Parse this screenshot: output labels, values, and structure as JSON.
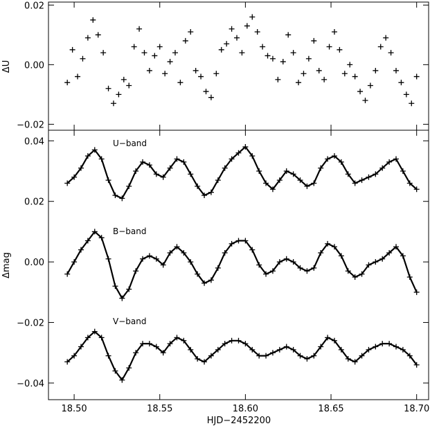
{
  "figure": {
    "background": "#ffffff",
    "ink": "#000000"
  },
  "chart_data": [
    {
      "type": "scatter",
      "panel": "top",
      "title": "",
      "xlabel": "",
      "ylabel": "ΔU",
      "xlim": [
        18.485,
        18.707
      ],
      "ylim": [
        -0.022,
        0.021
      ],
      "grid": false,
      "marker": "+",
      "xticks": [
        18.5,
        18.55,
        18.6,
        18.65,
        18.7
      ],
      "yticks": [
        -0.02,
        0.0,
        0.02
      ],
      "ytick_labels": [
        "−0.02",
        "0.00",
        "0.02"
      ],
      "series": [
        {
          "x": [
            18.496,
            18.499,
            18.502,
            18.505,
            18.508,
            18.511,
            18.514,
            18.517,
            18.52,
            18.523,
            18.526,
            18.529,
            18.532,
            18.535,
            18.538,
            18.541,
            18.544,
            18.547,
            18.55,
            18.553,
            18.556,
            18.559,
            18.562,
            18.565,
            18.568,
            18.571,
            18.574,
            18.577,
            18.58,
            18.583,
            18.586,
            18.589,
            18.592,
            18.595,
            18.598,
            18.601,
            18.604,
            18.607,
            18.61,
            18.613,
            18.616,
            18.619,
            18.622,
            18.625,
            18.628,
            18.631,
            18.634,
            18.637,
            18.64,
            18.643,
            18.646,
            18.649,
            18.652,
            18.655,
            18.658,
            18.661,
            18.664,
            18.667,
            18.67,
            18.673,
            18.676,
            18.679,
            18.682,
            18.685,
            18.688,
            18.691,
            18.694,
            18.697,
            18.7
          ],
          "y": [
            -0.006,
            0.005,
            -0.004,
            0.002,
            0.009,
            0.015,
            0.01,
            0.004,
            -0.008,
            -0.013,
            -0.01,
            -0.005,
            -0.007,
            0.006,
            0.012,
            0.004,
            -0.002,
            0.003,
            0.006,
            -0.003,
            0.001,
            0.004,
            -0.006,
            0.008,
            0.011,
            -0.002,
            -0.004,
            -0.009,
            -0.011,
            -0.003,
            0.005,
            0.007,
            0.012,
            0.009,
            0.004,
            0.013,
            0.016,
            0.011,
            0.006,
            0.003,
            0.002,
            -0.005,
            0.001,
            0.01,
            0.004,
            -0.006,
            -0.003,
            0.002,
            0.008,
            -0.002,
            -0.005,
            0.006,
            0.011,
            0.005,
            -0.003,
            0.0,
            -0.004,
            -0.009,
            -0.012,
            -0.007,
            -0.002,
            0.006,
            0.009,
            0.004,
            -0.002,
            -0.006,
            -0.01,
            -0.013,
            -0.004
          ]
        }
      ]
    },
    {
      "type": "scatter",
      "panel": "bottom",
      "title": "",
      "xlabel": "HJD−2452200",
      "ylabel": "Δmag",
      "xlim": [
        18.485,
        18.707
      ],
      "ylim": [
        -0.0455,
        0.0435
      ],
      "grid": false,
      "marker": "+",
      "fit_line": "solid black",
      "xticks": [
        18.5,
        18.55,
        18.6,
        18.65,
        18.7
      ],
      "xtick_labels": [
        "18.50",
        "18.55",
        "18.60",
        "18.65",
        "18.70"
      ],
      "yticks": [
        -0.04,
        -0.02,
        0.0,
        0.02,
        0.04
      ],
      "ytick_labels": [
        "−0.04",
        "−0.02",
        "0.00",
        "0.02",
        "0.04"
      ],
      "series": [
        {
          "name": "U−band",
          "offset": 0.03,
          "x": [
            18.496,
            18.5,
            18.504,
            18.508,
            18.512,
            18.516,
            18.52,
            18.524,
            18.528,
            18.532,
            18.536,
            18.54,
            18.544,
            18.548,
            18.552,
            18.556,
            18.56,
            18.564,
            18.568,
            18.572,
            18.576,
            18.58,
            18.584,
            18.588,
            18.592,
            18.596,
            18.6,
            18.604,
            18.608,
            18.612,
            18.616,
            18.62,
            18.624,
            18.628,
            18.632,
            18.636,
            18.64,
            18.644,
            18.648,
            18.652,
            18.656,
            18.66,
            18.664,
            18.668,
            18.672,
            18.676,
            18.68,
            18.684,
            18.688,
            18.692,
            18.696,
            18.7
          ],
          "y": [
            0.026,
            0.028,
            0.031,
            0.035,
            0.037,
            0.034,
            0.027,
            0.022,
            0.021,
            0.025,
            0.03,
            0.033,
            0.032,
            0.029,
            0.028,
            0.031,
            0.034,
            0.033,
            0.029,
            0.025,
            0.022,
            0.023,
            0.027,
            0.031,
            0.034,
            0.036,
            0.038,
            0.035,
            0.03,
            0.026,
            0.024,
            0.027,
            0.03,
            0.029,
            0.027,
            0.025,
            0.026,
            0.031,
            0.034,
            0.035,
            0.033,
            0.029,
            0.026,
            0.027,
            0.028,
            0.029,
            0.031,
            0.033,
            0.034,
            0.03,
            0.026,
            0.024
          ]
        },
        {
          "name": "B−band",
          "offset": 0.0,
          "x": [
            18.496,
            18.5,
            18.504,
            18.508,
            18.512,
            18.516,
            18.52,
            18.524,
            18.528,
            18.532,
            18.536,
            18.54,
            18.544,
            18.548,
            18.552,
            18.556,
            18.56,
            18.564,
            18.568,
            18.572,
            18.576,
            18.58,
            18.584,
            18.588,
            18.592,
            18.596,
            18.6,
            18.604,
            18.608,
            18.612,
            18.616,
            18.62,
            18.624,
            18.628,
            18.632,
            18.636,
            18.64,
            18.644,
            18.648,
            18.652,
            18.656,
            18.66,
            18.664,
            18.668,
            18.672,
            18.676,
            18.68,
            18.684,
            18.688,
            18.692,
            18.696,
            18.7
          ],
          "y": [
            -0.004,
            0.0,
            0.004,
            0.007,
            0.01,
            0.008,
            0.001,
            -0.008,
            -0.012,
            -0.009,
            -0.003,
            0.001,
            0.002,
            0.001,
            -0.001,
            0.003,
            0.005,
            0.003,
            0.0,
            -0.004,
            -0.007,
            -0.006,
            -0.002,
            0.003,
            0.006,
            0.007,
            0.007,
            0.004,
            -0.001,
            -0.004,
            -0.003,
            0.0,
            0.001,
            0.0,
            -0.002,
            -0.003,
            -0.002,
            0.003,
            0.006,
            0.005,
            0.002,
            -0.003,
            -0.005,
            -0.004,
            -0.001,
            0.0,
            0.001,
            0.003,
            0.005,
            0.002,
            -0.005,
            -0.01
          ]
        },
        {
          "name": "V−band",
          "offset": -0.03,
          "x": [
            18.496,
            18.5,
            18.504,
            18.508,
            18.512,
            18.516,
            18.52,
            18.524,
            18.528,
            18.532,
            18.536,
            18.54,
            18.544,
            18.548,
            18.552,
            18.556,
            18.56,
            18.564,
            18.568,
            18.572,
            18.576,
            18.58,
            18.584,
            18.588,
            18.592,
            18.596,
            18.6,
            18.604,
            18.608,
            18.612,
            18.616,
            18.62,
            18.624,
            18.628,
            18.632,
            18.636,
            18.64,
            18.644,
            18.648,
            18.652,
            18.656,
            18.66,
            18.664,
            18.668,
            18.672,
            18.676,
            18.68,
            18.684,
            18.688,
            18.692,
            18.696,
            18.7
          ],
          "y": [
            -0.033,
            -0.031,
            -0.028,
            -0.025,
            -0.023,
            -0.025,
            -0.031,
            -0.036,
            -0.039,
            -0.035,
            -0.03,
            -0.027,
            -0.027,
            -0.028,
            -0.03,
            -0.027,
            -0.025,
            -0.026,
            -0.029,
            -0.032,
            -0.033,
            -0.031,
            -0.029,
            -0.027,
            -0.026,
            -0.026,
            -0.027,
            -0.029,
            -0.031,
            -0.031,
            -0.03,
            -0.029,
            -0.028,
            -0.029,
            -0.031,
            -0.032,
            -0.031,
            -0.028,
            -0.025,
            -0.026,
            -0.029,
            -0.032,
            -0.033,
            -0.031,
            -0.029,
            -0.028,
            -0.027,
            -0.027,
            -0.028,
            -0.029,
            -0.031,
            -0.034
          ]
        }
      ]
    }
  ]
}
